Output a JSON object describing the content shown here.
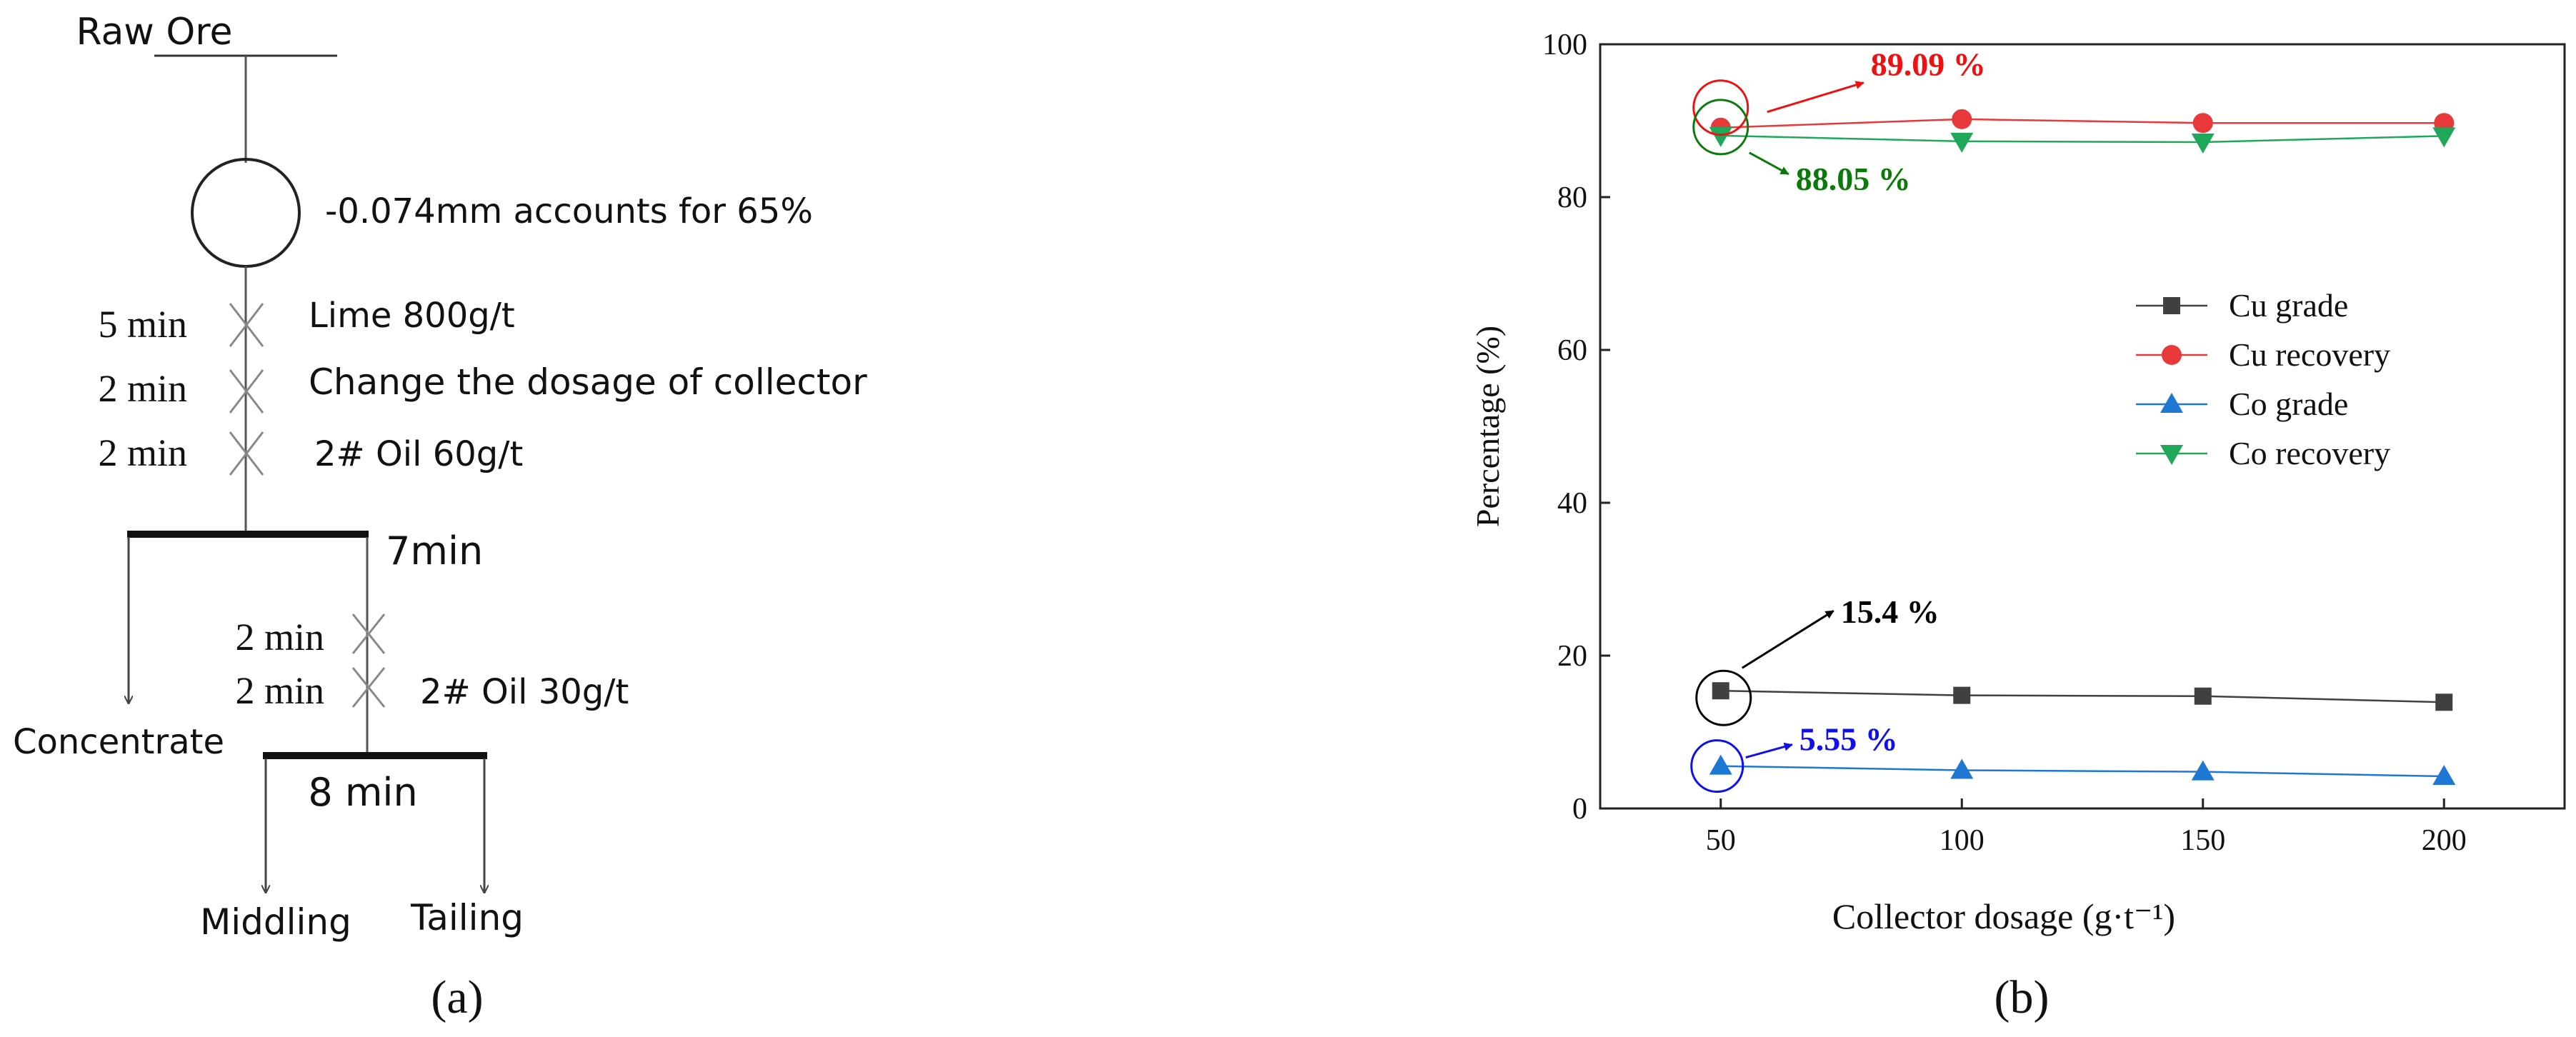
{
  "flowsheet": {
    "top_label": "Raw Ore",
    "grinding_note": "-0.074mm accounts for 65%",
    "steps": [
      {
        "time": "5 min",
        "reagent": "Lime 800g/t"
      },
      {
        "time": "2 min",
        "reagent": "Change the dosage of collector"
      },
      {
        "time": "2 min",
        "reagent": "2# Oil 60g/t"
      }
    ],
    "rougher_time": "7min",
    "scavenger_steps": [
      {
        "time": "2 min",
        "reagent": ""
      },
      {
        "time": "2 min",
        "reagent": "2# Oil 30g/t"
      }
    ],
    "concentrate_label": "Concentrate",
    "scavenger_time": "8 min",
    "middling_label": "Middling",
    "tailing_label": "Tailing",
    "panel_label": "(a)"
  },
  "chart_data": {
    "type": "line",
    "x": [
      50,
      100,
      150,
      200
    ],
    "xlabel": "Collector dosage (g·t⁻¹)",
    "ylabel": "Percentage (%)",
    "xlim": [
      25,
      225
    ],
    "ylim": [
      0,
      100
    ],
    "xticks": [
      "50",
      "100",
      "150",
      "200"
    ],
    "yticks": [
      "0",
      "20",
      "40",
      "60",
      "80",
      "100"
    ],
    "series": [
      {
        "name": "Cu grade",
        "values": [
          15.4,
          14.8,
          14.7,
          13.9
        ],
        "color": "#404040",
        "marker": "square"
      },
      {
        "name": "Cu recovery",
        "values": [
          89.09,
          90.2,
          89.7,
          89.7
        ],
        "color": "#e8393a",
        "marker": "circle"
      },
      {
        "name": "Co grade",
        "values": [
          5.55,
          5.0,
          4.8,
          4.2
        ],
        "color": "#1f77d4",
        "marker": "triangle-up"
      },
      {
        "name": "Co recovery",
        "values": [
          88.05,
          87.3,
          87.2,
          88.0
        ],
        "color": "#1fa85a",
        "marker": "triangle-down"
      }
    ],
    "annotations": [
      {
        "text": "89.09 %",
        "color": "#ee1111",
        "series": "Cu recovery",
        "x": 50
      },
      {
        "text": "88.05 %",
        "color": "#0a7a0a",
        "series": "Co recovery",
        "x": 50
      },
      {
        "text": "15.4 %",
        "color": "#000000",
        "series": "Cu grade",
        "x": 50
      },
      {
        "text": "5.55 %",
        "color": "#1010ee",
        "series": "Co grade",
        "x": 50
      }
    ],
    "legend_position": "center-right",
    "grid": false,
    "panel_label": "(b)"
  }
}
